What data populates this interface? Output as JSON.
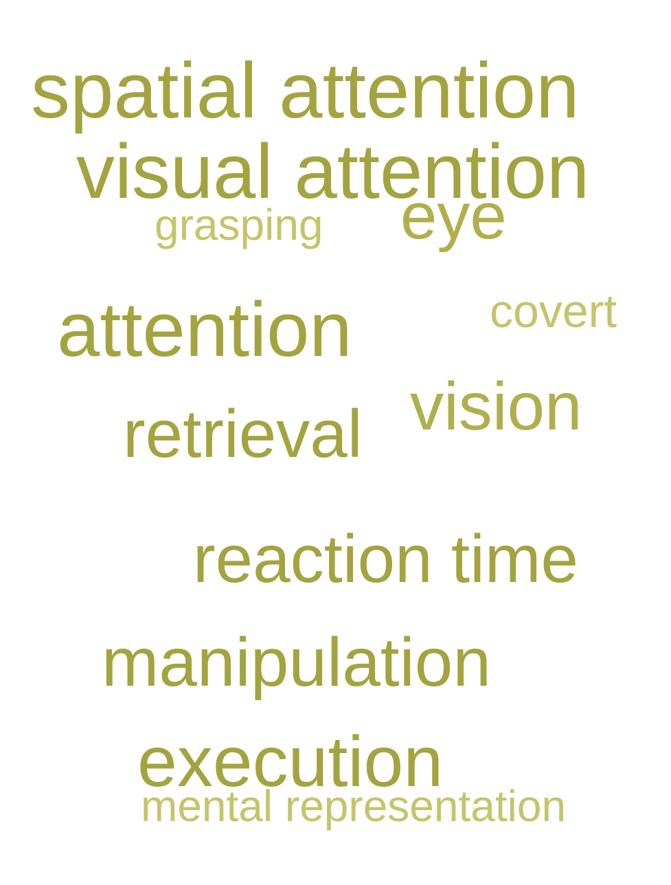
{
  "word_cloud": {
    "words": [
      {
        "text": "spatial attention",
        "tone": "strong"
      },
      {
        "text": "visual attention",
        "tone": "strong"
      },
      {
        "text": "grasping",
        "tone": "light"
      },
      {
        "text": "eye",
        "tone": "mid"
      },
      {
        "text": "attention",
        "tone": "strong"
      },
      {
        "text": "covert",
        "tone": "light"
      },
      {
        "text": "retrieval",
        "tone": "strong"
      },
      {
        "text": "vision",
        "tone": "mid"
      },
      {
        "text": "reaction time",
        "tone": "strong"
      },
      {
        "text": "manipulation",
        "tone": "strong"
      },
      {
        "text": "execution",
        "tone": "strong"
      },
      {
        "text": "mental representation",
        "tone": "light"
      }
    ],
    "colors": {
      "strong": "#a3a440",
      "mid": "#b0af4c",
      "light": "#c4c46a",
      "background": "#ffffff"
    }
  }
}
